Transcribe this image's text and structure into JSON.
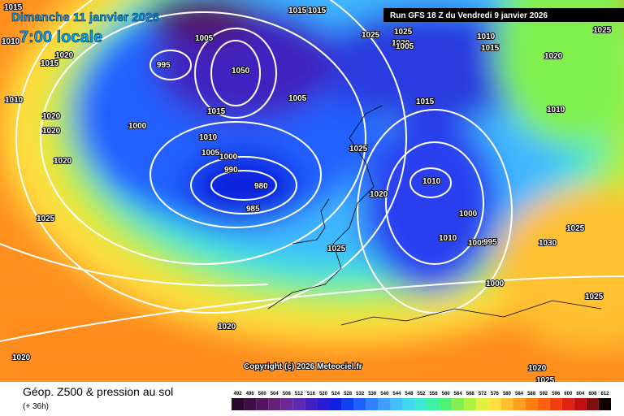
{
  "header": {
    "date": "Dimanche 11 janvier 2026",
    "time": "7:00 locale",
    "run": "Run GFS 18 Z du Vendredi 9 janvier 2026"
  },
  "copyright": "Copyright (c) 2026 Meteociel.fr",
  "footer": {
    "title": "Géop. Z500 & pression au sol",
    "step": "(+ 36h)"
  },
  "scale": {
    "values": [
      492,
      496,
      500,
      504,
      508,
      512,
      516,
      520,
      524,
      528,
      532,
      536,
      540,
      544,
      548,
      552,
      556,
      560,
      564,
      568,
      572,
      576,
      580,
      584,
      588,
      592,
      596,
      600,
      604,
      608,
      612
    ],
    "colors": [
      "#2a0a2a",
      "#3e0f46",
      "#521660",
      "#62207a",
      "#6a2a96",
      "#5a2ab0",
      "#4020c0",
      "#2a1ad0",
      "#1020e0",
      "#1040f0",
      "#2060ff",
      "#3080ff",
      "#40a0ff",
      "#40c0ff",
      "#40d8f0",
      "#40e8d0",
      "#40f0a0",
      "#50f070",
      "#80f050",
      "#b0f040",
      "#e0f040",
      "#ffe040",
      "#ffc030",
      "#ffa020",
      "#ff8010",
      "#ff6010",
      "#f04010",
      "#e02010",
      "#c01010",
      "#801010",
      "#100000"
    ]
  },
  "isobars": [
    "1015",
    "1015",
    "1015",
    "1005",
    "1010",
    "1020",
    "995",
    "1015",
    "1050",
    "1010",
    "1020",
    "1020",
    "1020",
    "1000",
    "1015",
    "1005",
    "1010",
    "1005",
    "1000",
    "990",
    "980",
    "985",
    "1025",
    "1025",
    "1025",
    "1020",
    "1025",
    "1025",
    "1015",
    "1010",
    "1020",
    "1010",
    "1005",
    "1000",
    "1010",
    "1005",
    "995",
    "1000",
    "1015",
    "1010",
    "1020",
    "1025",
    "1030",
    "1025",
    "1025",
    "1020",
    "1020",
    "1020",
    "1025"
  ]
}
